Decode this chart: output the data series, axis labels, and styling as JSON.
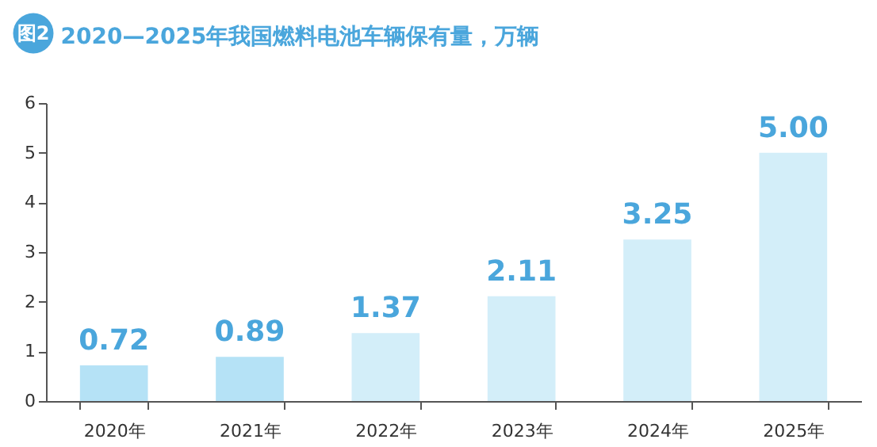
{
  "chart_data": {
    "type": "bar",
    "title": "2020—2025年我国燃料电池车辆保有量，万辆",
    "annotations": [
      "图2"
    ],
    "categories": [
      "2020年",
      "2021年",
      "2022年",
      "2023年",
      "2024年",
      "2025年"
    ],
    "values": [
      0.72,
      0.89,
      1.37,
      2.11,
      3.25,
      5.0
    ],
    "value_labels": [
      "0.72",
      "0.89",
      "1.37",
      "2.11",
      "3.25",
      "5.00"
    ],
    "colors": [
      "#b5e2f6",
      "#b5e2f6",
      "#d3eef9",
      "#d3eef9",
      "#d3eef9",
      "#d3eef9"
    ],
    "ylim": [
      0,
      6
    ],
    "yticks": [
      0,
      1,
      2,
      3,
      4,
      5,
      6
    ],
    "grid": false
  }
}
